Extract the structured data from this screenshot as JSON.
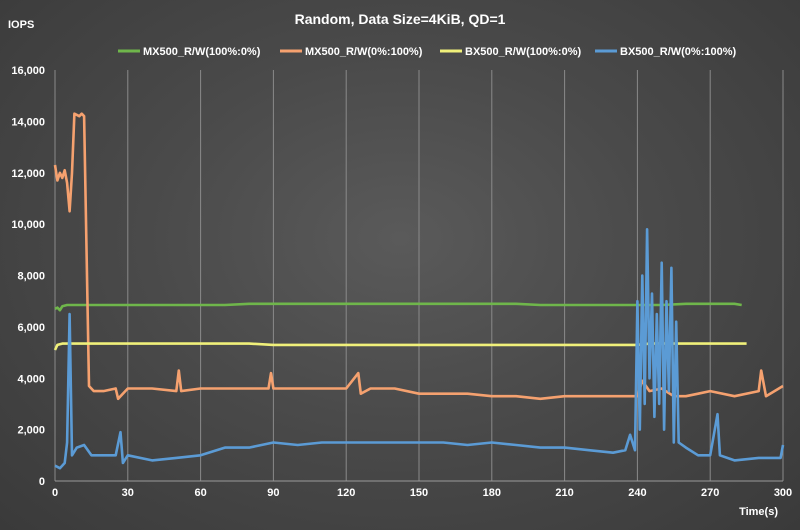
{
  "chart_data": {
    "type": "line",
    "title": "Random,  Data Size=4KiB,  QD=1",
    "ylabel": "IOPS",
    "xlabel": "Time(s)",
    "xlim": [
      0,
      300
    ],
    "ylim": [
      0,
      16000
    ],
    "x_ticks": [
      0,
      30,
      60,
      90,
      120,
      150,
      180,
      210,
      240,
      270,
      300
    ],
    "y_ticks": [
      0,
      2000,
      4000,
      6000,
      8000,
      10000,
      12000,
      14000,
      16000
    ],
    "y_tick_labels": [
      "0",
      "2,000",
      "4,000",
      "6,000",
      "8,000",
      "10,000",
      "12,000",
      "14,000",
      "16,000"
    ],
    "grid": "vertical",
    "legend_position": "top",
    "series": [
      {
        "name": "MX500_R/W(100%:0%)",
        "color": "#6fb64b",
        "points": [
          [
            0,
            6700
          ],
          [
            1,
            6750
          ],
          [
            2,
            6650
          ],
          [
            3,
            6800
          ],
          [
            5,
            6850
          ],
          [
            10,
            6850
          ],
          [
            20,
            6850
          ],
          [
            30,
            6850
          ],
          [
            40,
            6850
          ],
          [
            50,
            6850
          ],
          [
            60,
            6850
          ],
          [
            70,
            6850
          ],
          [
            80,
            6900
          ],
          [
            90,
            6900
          ],
          [
            100,
            6900
          ],
          [
            110,
            6900
          ],
          [
            120,
            6900
          ],
          [
            130,
            6900
          ],
          [
            140,
            6900
          ],
          [
            150,
            6900
          ],
          [
            160,
            6900
          ],
          [
            170,
            6900
          ],
          [
            180,
            6900
          ],
          [
            190,
            6900
          ],
          [
            200,
            6850
          ],
          [
            210,
            6850
          ],
          [
            220,
            6850
          ],
          [
            230,
            6850
          ],
          [
            240,
            6850
          ],
          [
            250,
            6850
          ],
          [
            260,
            6900
          ],
          [
            270,
            6900
          ],
          [
            280,
            6900
          ],
          [
            283,
            6850
          ]
        ]
      },
      {
        "name": "MX500_R/W(0%:100%)",
        "color": "#f5a16f",
        "points": [
          [
            0,
            12300
          ],
          [
            1,
            11700
          ],
          [
            2,
            12000
          ],
          [
            3,
            11800
          ],
          [
            4,
            12100
          ],
          [
            5,
            11600
          ],
          [
            6,
            10500
          ],
          [
            7,
            12000
          ],
          [
            8,
            14300
          ],
          [
            10,
            14200
          ],
          [
            11,
            14300
          ],
          [
            12,
            14200
          ],
          [
            14,
            3700
          ],
          [
            16,
            3500
          ],
          [
            20,
            3500
          ],
          [
            25,
            3600
          ],
          [
            26,
            3200
          ],
          [
            30,
            3600
          ],
          [
            40,
            3600
          ],
          [
            50,
            3500
          ],
          [
            51,
            4300
          ],
          [
            52,
            3500
          ],
          [
            60,
            3600
          ],
          [
            70,
            3600
          ],
          [
            80,
            3600
          ],
          [
            88,
            3600
          ],
          [
            89,
            4200
          ],
          [
            90,
            3600
          ],
          [
            100,
            3600
          ],
          [
            110,
            3600
          ],
          [
            120,
            3600
          ],
          [
            125,
            4200
          ],
          [
            126,
            3400
          ],
          [
            130,
            3600
          ],
          [
            140,
            3600
          ],
          [
            150,
            3400
          ],
          [
            160,
            3400
          ],
          [
            170,
            3400
          ],
          [
            180,
            3300
          ],
          [
            190,
            3300
          ],
          [
            200,
            3200
          ],
          [
            210,
            3300
          ],
          [
            220,
            3300
          ],
          [
            230,
            3300
          ],
          [
            240,
            3300
          ],
          [
            242,
            3900
          ],
          [
            245,
            3500
          ],
          [
            250,
            3600
          ],
          [
            255,
            3300
          ],
          [
            260,
            3300
          ],
          [
            265,
            3400
          ],
          [
            270,
            3500
          ],
          [
            280,
            3300
          ],
          [
            290,
            3500
          ],
          [
            291,
            4300
          ],
          [
            293,
            3300
          ],
          [
            300,
            3700
          ]
        ]
      },
      {
        "name": "BX500_R/W(100%:0%)",
        "color": "#f0f07a",
        "points": [
          [
            0,
            5100
          ],
          [
            1,
            5300
          ],
          [
            3,
            5350
          ],
          [
            10,
            5350
          ],
          [
            20,
            5350
          ],
          [
            30,
            5350
          ],
          [
            40,
            5350
          ],
          [
            50,
            5350
          ],
          [
            60,
            5350
          ],
          [
            70,
            5350
          ],
          [
            80,
            5350
          ],
          [
            90,
            5300
          ],
          [
            100,
            5300
          ],
          [
            110,
            5300
          ],
          [
            120,
            5300
          ],
          [
            130,
            5300
          ],
          [
            140,
            5300
          ],
          [
            150,
            5300
          ],
          [
            160,
            5300
          ],
          [
            170,
            5300
          ],
          [
            180,
            5300
          ],
          [
            190,
            5300
          ],
          [
            200,
            5300
          ],
          [
            210,
            5300
          ],
          [
            220,
            5300
          ],
          [
            230,
            5300
          ],
          [
            240,
            5300
          ],
          [
            245,
            5350
          ],
          [
            250,
            5350
          ],
          [
            260,
            5350
          ],
          [
            270,
            5350
          ],
          [
            280,
            5350
          ],
          [
            285,
            5350
          ]
        ]
      },
      {
        "name": "BX500_R/W(0%:100%)",
        "color": "#5b9bd5",
        "points": [
          [
            0,
            600
          ],
          [
            2,
            500
          ],
          [
            4,
            700
          ],
          [
            5,
            1500
          ],
          [
            6,
            6500
          ],
          [
            7,
            1000
          ],
          [
            9,
            1300
          ],
          [
            12,
            1400
          ],
          [
            15,
            1000
          ],
          [
            20,
            1000
          ],
          [
            25,
            1000
          ],
          [
            27,
            1900
          ],
          [
            28,
            700
          ],
          [
            30,
            1000
          ],
          [
            40,
            800
          ],
          [
            50,
            900
          ],
          [
            60,
            1000
          ],
          [
            70,
            1300
          ],
          [
            80,
            1300
          ],
          [
            90,
            1500
          ],
          [
            100,
            1400
          ],
          [
            110,
            1500
          ],
          [
            120,
            1500
          ],
          [
            130,
            1500
          ],
          [
            140,
            1500
          ],
          [
            150,
            1500
          ],
          [
            160,
            1500
          ],
          [
            170,
            1400
          ],
          [
            180,
            1500
          ],
          [
            190,
            1400
          ],
          [
            200,
            1300
          ],
          [
            210,
            1300
          ],
          [
            220,
            1200
          ],
          [
            230,
            1100
          ],
          [
            235,
            1200
          ],
          [
            237,
            1800
          ],
          [
            239,
            1200
          ],
          [
            240,
            7000
          ],
          [
            241,
            2000
          ],
          [
            242,
            8000
          ],
          [
            243,
            3000
          ],
          [
            244,
            9800
          ],
          [
            245,
            4000
          ],
          [
            246,
            7300
          ],
          [
            247,
            2500
          ],
          [
            248,
            6500
          ],
          [
            249,
            3000
          ],
          [
            250,
            8500
          ],
          [
            251,
            2000
          ],
          [
            252,
            7000
          ],
          [
            253,
            3500
          ],
          [
            254,
            8300
          ],
          [
            255,
            1500
          ],
          [
            256,
            6200
          ],
          [
            257,
            1500
          ],
          [
            260,
            1300
          ],
          [
            265,
            1000
          ],
          [
            270,
            1000
          ],
          [
            273,
            2600
          ],
          [
            274,
            1000
          ],
          [
            280,
            800
          ],
          [
            290,
            900
          ],
          [
            299,
            900
          ],
          [
            300,
            1400
          ]
        ]
      }
    ]
  }
}
